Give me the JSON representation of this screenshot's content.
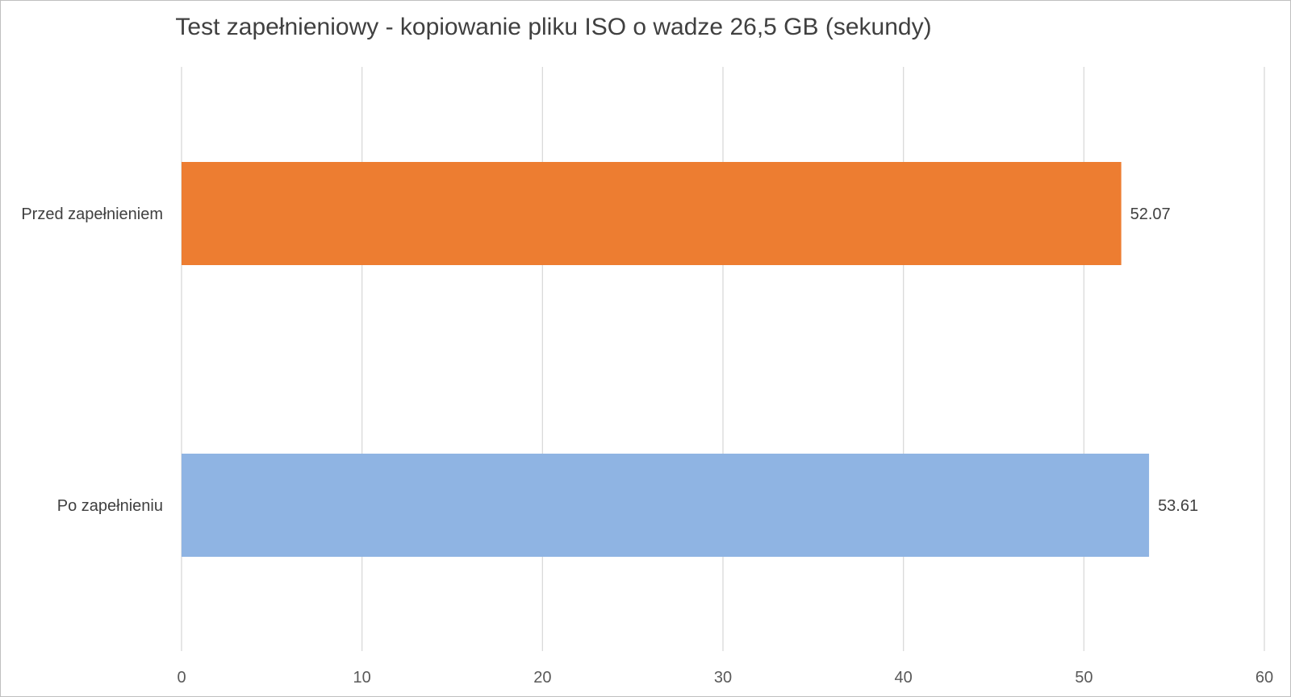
{
  "chart_data": {
    "type": "bar",
    "orientation": "horizontal",
    "title": "Test zapełnieniowy - kopiowanie pliku ISO o wadze 26,5 GB (sekundy)",
    "categories": [
      "Przed zapełnieniem",
      "Po zapełnieniu"
    ],
    "values": [
      52.07,
      53.61
    ],
    "value_labels": [
      "52.07",
      "53.61"
    ],
    "bar_colors": [
      "#ED7D31",
      "#8FB4E3"
    ],
    "xlim": [
      0,
      60
    ],
    "xticks": [
      0,
      10,
      20,
      30,
      40,
      50,
      60
    ],
    "grid": true,
    "xlabel": "",
    "ylabel": ""
  }
}
